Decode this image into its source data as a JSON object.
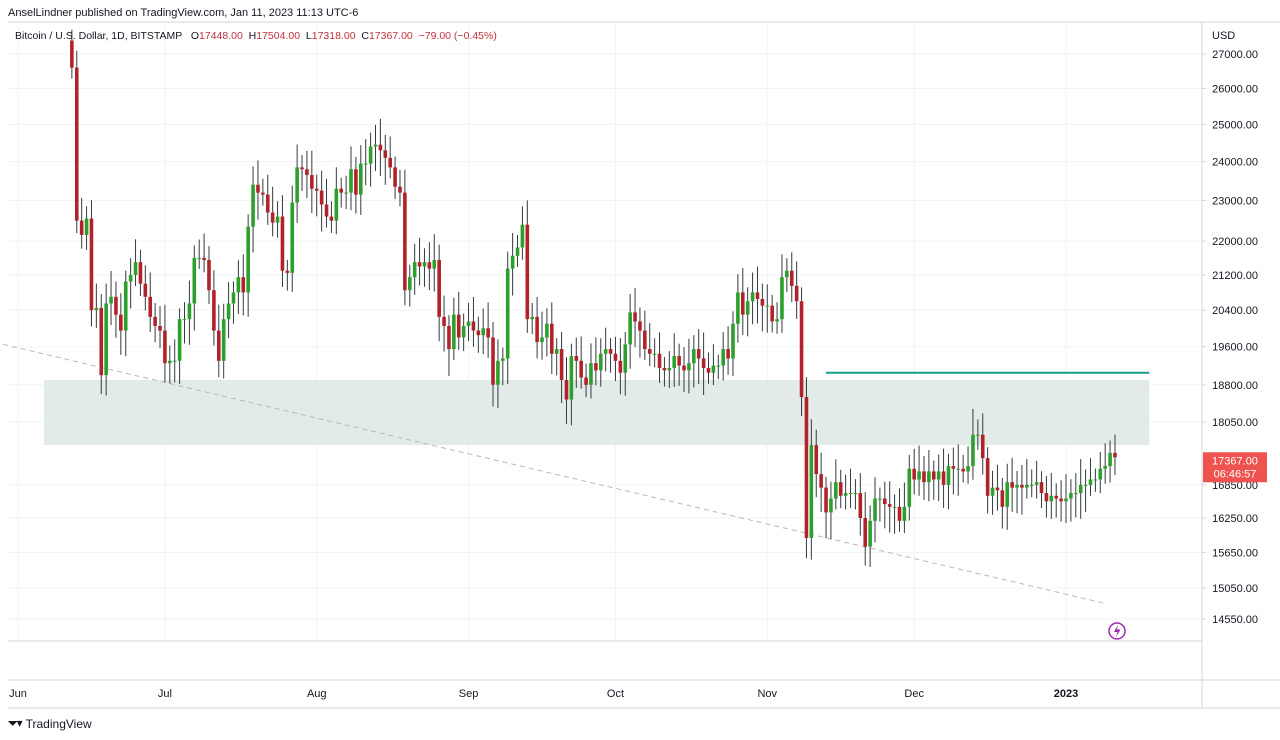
{
  "header": {
    "publisher_line": "AnselLindner published on TradingView.com, Jan 11, 2023 11:13 UTC-6",
    "symbol": "Bitcoin / U.S. Dollar, 1D, BITSTAMP",
    "open_label": "O",
    "open_value": "17448.00",
    "high_label": "H",
    "high_value": "17504.00",
    "low_label": "L",
    "low_value": "17318.00",
    "close_label": "C",
    "close_value": "17367.00",
    "change": "−79.00 (−0.45%)"
  },
  "axis": {
    "currency": "USD",
    "price_ticks": [
      "27000.00",
      "26000.00",
      "25000.00",
      "24000.00",
      "23000.00",
      "22000.00",
      "21200.00",
      "20400.00",
      "19600.00",
      "18800.00",
      "18050.00",
      "16850.00",
      "16250.00",
      "15650.00",
      "15050.00",
      "14550.00"
    ],
    "last_price_label": "17367.00",
    "countdown_label": "06:46:57",
    "month_labels": [
      "Jun",
      "Jul",
      "Aug",
      "Sep",
      "Oct",
      "Nov",
      "Dec",
      "2023"
    ]
  },
  "colors": {
    "up": "#26a69a",
    "down": "#ef5350",
    "candle_up": "#2ca02c",
    "candle_down": "#b2222a",
    "zone_fill": "#e3ebe9",
    "resistance_line": "#12a08a",
    "trend_line": "#b8b8b8",
    "last_price_bg": "#ef5350",
    "grid": "#f0f3f5"
  },
  "chart_data": {
    "type": "candlestick",
    "symbol": "Bitcoin / U.S. Dollar, 1D, BITSTAMP",
    "x_start": "2022-06-12",
    "x_end": "2023-01-11",
    "y_axis": "log",
    "ylim": [
      14200,
      27700
    ],
    "grid": true,
    "last_close": 17367,
    "support_zone": {
      "from_date": "2022-06-01",
      "to_date": "2023-01-18",
      "low": 17600,
      "high": 18900
    },
    "resistance_line": {
      "from_date": "2022-11-13",
      "to_date": "2023-01-18",
      "price": 19050
    },
    "trend_line": {
      "points": [
        [
          "2022-05-31",
          19650
        ],
        [
          "2023-01-09",
          14800
        ]
      ]
    },
    "candles_note": "approximate daily OHLC read from chart",
    "closes": [
      [
        "2022-06-12",
        26600
      ],
      [
        "2022-06-13",
        22500
      ],
      [
        "2022-06-14",
        22150
      ],
      [
        "2022-06-15",
        22550
      ],
      [
        "2022-06-16",
        20400
      ],
      [
        "2022-06-17",
        20450
      ],
      [
        "2022-06-18",
        19000
      ],
      [
        "2022-06-19",
        20550
      ],
      [
        "2022-06-20",
        20700
      ],
      [
        "2022-06-21",
        20300
      ],
      [
        "2022-06-22",
        19950
      ],
      [
        "2022-06-23",
        21050
      ],
      [
        "2022-06-24",
        21200
      ],
      [
        "2022-06-25",
        21500
      ],
      [
        "2022-06-26",
        21000
      ],
      [
        "2022-06-27",
        20700
      ],
      [
        "2022-06-28",
        20250
      ],
      [
        "2022-06-29",
        20050
      ],
      [
        "2022-06-30",
        19950
      ],
      [
        "2022-07-01",
        19250
      ],
      [
        "2022-07-02",
        19300
      ],
      [
        "2022-07-03",
        19300
      ],
      [
        "2022-07-04",
        20200
      ],
      [
        "2022-07-05",
        20200
      ],
      [
        "2022-07-06",
        20550
      ],
      [
        "2022-07-07",
        21600
      ],
      [
        "2022-07-08",
        21600
      ],
      [
        "2022-07-09",
        21550
      ],
      [
        "2022-07-10",
        20850
      ],
      [
        "2022-07-11",
        19950
      ],
      [
        "2022-07-12",
        19300
      ],
      [
        "2022-07-13",
        20200
      ],
      [
        "2022-07-14",
        20550
      ],
      [
        "2022-07-15",
        20800
      ],
      [
        "2022-07-16",
        21150
      ],
      [
        "2022-07-17",
        20800
      ],
      [
        "2022-07-18",
        22350
      ],
      [
        "2022-07-19",
        23400
      ],
      [
        "2022-07-20",
        23200
      ],
      [
        "2022-07-21",
        23150
      ],
      [
        "2022-07-22",
        22700
      ],
      [
        "2022-07-23",
        22450
      ],
      [
        "2022-07-24",
        22600
      ],
      [
        "2022-07-25",
        21300
      ],
      [
        "2022-07-26",
        21250
      ],
      [
        "2022-07-27",
        22950
      ],
      [
        "2022-07-28",
        23850
      ],
      [
        "2022-07-29",
        23800
      ],
      [
        "2022-07-30",
        23650
      ],
      [
        "2022-07-31",
        23300
      ],
      [
        "2022-08-01",
        23250
      ],
      [
        "2022-08-02",
        22900
      ],
      [
        "2022-08-03",
        22600
      ],
      [
        "2022-08-04",
        22500
      ],
      [
        "2022-08-05",
        23300
      ],
      [
        "2022-08-06",
        23200
      ],
      [
        "2022-08-07",
        23200
      ],
      [
        "2022-08-08",
        23800
      ],
      [
        "2022-08-09",
        23150
      ],
      [
        "2022-08-10",
        23950
      ],
      [
        "2022-08-11",
        23950
      ],
      [
        "2022-08-12",
        24400
      ],
      [
        "2022-08-13",
        24450
      ],
      [
        "2022-08-14",
        24300
      ],
      [
        "2022-08-15",
        24100
      ],
      [
        "2022-08-16",
        23850
      ],
      [
        "2022-08-17",
        23350
      ],
      [
        "2022-08-18",
        23200
      ],
      [
        "2022-08-19",
        20850
      ],
      [
        "2022-08-20",
        21150
      ],
      [
        "2022-08-21",
        21500
      ],
      [
        "2022-08-22",
        21400
      ],
      [
        "2022-08-23",
        21500
      ],
      [
        "2022-08-24",
        21350
      ],
      [
        "2022-08-25",
        21550
      ],
      [
        "2022-08-26",
        20250
      ],
      [
        "2022-08-27",
        20050
      ],
      [
        "2022-08-28",
        19550
      ],
      [
        "2022-08-29",
        20300
      ],
      [
        "2022-08-30",
        19800
      ],
      [
        "2022-08-31",
        20050
      ],
      [
        "2022-09-01",
        20150
      ],
      [
        "2022-09-02",
        19950
      ],
      [
        "2022-09-03",
        19850
      ],
      [
        "2022-09-04",
        20000
      ],
      [
        "2022-09-05",
        19800
      ],
      [
        "2022-09-06",
        18800
      ],
      [
        "2022-09-07",
        19300
      ],
      [
        "2022-09-08",
        19350
      ],
      [
        "2022-09-09",
        21350
      ],
      [
        "2022-09-10",
        21650
      ],
      [
        "2022-09-11",
        21850
      ],
      [
        "2022-09-12",
        22400
      ],
      [
        "2022-09-13",
        20200
      ],
      [
        "2022-09-14",
        20250
      ],
      [
        "2022-09-15",
        19700
      ],
      [
        "2022-09-16",
        19800
      ],
      [
        "2022-09-17",
        20100
      ],
      [
        "2022-09-18",
        19450
      ],
      [
        "2022-09-19",
        19550
      ],
      [
        "2022-09-20",
        18900
      ],
      [
        "2022-09-21",
        18500
      ],
      [
        "2022-09-22",
        19400
      ],
      [
        "2022-09-23",
        19300
      ],
      [
        "2022-09-24",
        18950
      ],
      [
        "2022-09-25",
        18800
      ],
      [
        "2022-09-26",
        19250
      ],
      [
        "2022-09-27",
        19100
      ],
      [
        "2022-09-28",
        19450
      ],
      [
        "2022-09-29",
        19550
      ],
      [
        "2022-09-30",
        19450
      ],
      [
        "2022-10-01",
        19300
      ],
      [
        "2022-10-02",
        19050
      ],
      [
        "2022-10-03",
        19650
      ],
      [
        "2022-10-04",
        20350
      ],
      [
        "2022-10-05",
        20150
      ],
      [
        "2022-10-06",
        19950
      ],
      [
        "2022-10-07",
        19550
      ],
      [
        "2022-10-08",
        19450
      ],
      [
        "2022-10-09",
        19450
      ],
      [
        "2022-10-10",
        19150
      ],
      [
        "2022-10-11",
        19100
      ],
      [
        "2022-10-12",
        19150
      ],
      [
        "2022-10-13",
        19400
      ],
      [
        "2022-10-14",
        19200
      ],
      [
        "2022-10-15",
        19100
      ],
      [
        "2022-10-16",
        19250
      ],
      [
        "2022-10-17",
        19550
      ],
      [
        "2022-10-18",
        19350
      ],
      [
        "2022-10-19",
        19150
      ],
      [
        "2022-10-20",
        19050
      ],
      [
        "2022-10-21",
        19200
      ],
      [
        "2022-10-22",
        19200
      ],
      [
        "2022-10-23",
        19550
      ],
      [
        "2022-10-24",
        19350
      ],
      [
        "2022-10-25",
        20100
      ],
      [
        "2022-10-26",
        20800
      ],
      [
        "2022-10-27",
        20300
      ],
      [
        "2022-10-28",
        20600
      ],
      [
        "2022-10-29",
        20800
      ],
      [
        "2022-10-30",
        20650
      ],
      [
        "2022-10-31",
        20500
      ],
      [
        "2022-11-01",
        20500
      ],
      [
        "2022-11-02",
        20150
      ],
      [
        "2022-11-03",
        20200
      ],
      [
        "2022-11-04",
        21150
      ],
      [
        "2022-11-05",
        21300
      ],
      [
        "2022-11-06",
        20950
      ],
      [
        "2022-11-07",
        20600
      ],
      [
        "2022-11-08",
        18550
      ],
      [
        "2022-11-09",
        15900
      ],
      [
        "2022-11-10",
        17600
      ],
      [
        "2022-11-11",
        17050
      ],
      [
        "2022-11-12",
        16800
      ],
      [
        "2022-11-13",
        16350
      ],
      [
        "2022-11-14",
        16600
      ],
      [
        "2022-11-15",
        16900
      ],
      [
        "2022-11-16",
        16650
      ],
      [
        "2022-11-17",
        16700
      ],
      [
        "2022-11-18",
        16700
      ],
      [
        "2022-11-19",
        16700
      ],
      [
        "2022-11-20",
        16250
      ],
      [
        "2022-11-21",
        15750
      ],
      [
        "2022-11-22",
        16200
      ],
      [
        "2022-11-23",
        16600
      ],
      [
        "2022-11-24",
        16600
      ],
      [
        "2022-11-25",
        16500
      ],
      [
        "2022-11-26",
        16450
      ],
      [
        "2022-11-27",
        16450
      ],
      [
        "2022-11-28",
        16200
      ],
      [
        "2022-11-29",
        16450
      ],
      [
        "2022-11-30",
        17150
      ],
      [
        "2022-12-01",
        16950
      ],
      [
        "2022-12-02",
        17100
      ],
      [
        "2022-12-03",
        16900
      ],
      [
        "2022-12-04",
        17100
      ],
      [
        "2022-12-05",
        16950
      ],
      [
        "2022-12-06",
        17100
      ],
      [
        "2022-12-07",
        16850
      ],
      [
        "2022-12-08",
        17200
      ],
      [
        "2022-12-09",
        17150
      ],
      [
        "2022-12-10",
        17150
      ],
      [
        "2022-12-11",
        17100
      ],
      [
        "2022-12-12",
        17200
      ],
      [
        "2022-12-13",
        17800
      ],
      [
        "2022-12-14",
        17800
      ],
      [
        "2022-12-15",
        17350
      ],
      [
        "2022-12-16",
        16650
      ],
      [
        "2022-12-17",
        16800
      ],
      [
        "2022-12-18",
        16750
      ],
      [
        "2022-12-19",
        16450
      ],
      [
        "2022-12-20",
        16900
      ],
      [
        "2022-12-21",
        16800
      ],
      [
        "2022-12-22",
        16850
      ],
      [
        "2022-12-23",
        16800
      ],
      [
        "2022-12-24",
        16850
      ],
      [
        "2022-12-25",
        16850
      ],
      [
        "2022-12-26",
        16900
      ],
      [
        "2022-12-27",
        16700
      ],
      [
        "2022-12-28",
        16550
      ],
      [
        "2022-12-29",
        16650
      ],
      [
        "2022-12-30",
        16600
      ],
      [
        "2022-12-31",
        16550
      ],
      [
        "2023-01-01",
        16600
      ],
      [
        "2023-01-02",
        16700
      ],
      [
        "2023-01-03",
        16700
      ],
      [
        "2023-01-04",
        16850
      ],
      [
        "2023-01-05",
        16850
      ],
      [
        "2023-01-06",
        16950
      ],
      [
        "2023-01-07",
        16950
      ],
      [
        "2023-01-08",
        17150
      ],
      [
        "2023-01-09",
        17200
      ],
      [
        "2023-01-10",
        17450
      ],
      [
        "2023-01-11",
        17367
      ]
    ],
    "first_open": 27400
  }
}
